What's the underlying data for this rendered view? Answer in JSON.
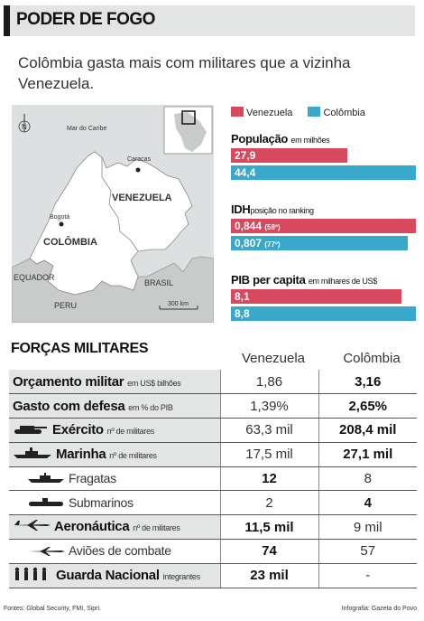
{
  "header": {
    "title": "PODER DE FOGO"
  },
  "subtitle": "Colômbia gasta mais com militares que a vizinha Venezuela.",
  "map": {
    "labels": {
      "mar": "Mar do Caribe",
      "caracas": "Caracas",
      "venezuela": "VENEZUELA",
      "bogota": "Bogotá",
      "colombia": "COLÔMBIA",
      "equador": "EQUADOR",
      "brasil": "BRASIL",
      "peru": "PERU",
      "scale": "300 km",
      "north": "N"
    },
    "colors": {
      "land": "#ffffff",
      "outside": "#c9cbcb",
      "sea": "#dde0e0",
      "border": "#888888"
    }
  },
  "legend": [
    {
      "label": "Venezuela",
      "color": "#d6495f"
    },
    {
      "label": "Colômbia",
      "color": "#3aa8cb"
    }
  ],
  "metrics": {
    "populacao": {
      "title": "População",
      "unit": "em milhões",
      "venezuela": "27,9",
      "colombia": "44,4",
      "venezuela_value": 27.9,
      "colombia_value": 44.4
    },
    "idh": {
      "title": "IDH",
      "unit": "posição no ranking",
      "venezuela": "0,844",
      "venezuela_rank": "(58º)",
      "colombia": "0,807",
      "colombia_rank": "(77º)",
      "venezuela_value": 0.844,
      "colombia_value": 0.807
    },
    "pib": {
      "title": "PIB per capita",
      "unit": "em milhares de US$",
      "venezuela": "8,1",
      "colombia": "8,8",
      "venezuela_value": 8.1,
      "colombia_value": 8.8
    }
  },
  "forces": {
    "title": "FORÇAS MILITARES",
    "col_venezuela": "Venezuela",
    "col_colombia": "Colômbia",
    "rows": [
      {
        "label": "Orçamento militar",
        "unit": "em US$ bilhões",
        "venezuela": "1,86",
        "colombia": "3,16",
        "bold": "colombia"
      },
      {
        "label": "Gasto com defesa",
        "unit": "em % do PIB",
        "venezuela": "1,39%",
        "colombia": "2,65%",
        "bold": "colombia"
      },
      {
        "label": "Exército",
        "unit": "nº de militares",
        "venezuela": "63,3 mil",
        "colombia": "208,4 mil",
        "bold": "colombia",
        "icon": "tank-icon"
      },
      {
        "label": "Marinha",
        "unit": "nº de militares",
        "venezuela": "17,5 mil",
        "colombia": "27,1 mil",
        "bold": "colombia",
        "icon": "ship-icon"
      },
      {
        "label": "Fragatas",
        "unit": "",
        "venezuela": "12",
        "colombia": "8",
        "bold": "venezuela",
        "icon": "frigate-icon",
        "sub": true
      },
      {
        "label": "Submarinos",
        "unit": "",
        "venezuela": "2",
        "colombia": "4",
        "bold": "colombia",
        "icon": "submarine-icon",
        "sub": true
      },
      {
        "label": "Aeronáutica",
        "unit": "nº de militares",
        "venezuela": "11,5 mil",
        "colombia": "9 mil",
        "bold": "venezuela",
        "icon": "plane-icon"
      },
      {
        "label": "Aviões de combate",
        "unit": "",
        "venezuela": "74",
        "colombia": "57",
        "bold": "venezuela",
        "icon": "fighter-jet-icon",
        "sub": true
      },
      {
        "label": "Guarda Nacional",
        "unit": "integrantes",
        "venezuela": "23 mil",
        "colombia": "-",
        "bold": "venezuela",
        "icon": "soldiers-icon"
      }
    ]
  },
  "footer": {
    "sources": "Fontes: Global Security, FMI, Sipri.",
    "credit": "Infografia: Gazeta do Povo"
  }
}
